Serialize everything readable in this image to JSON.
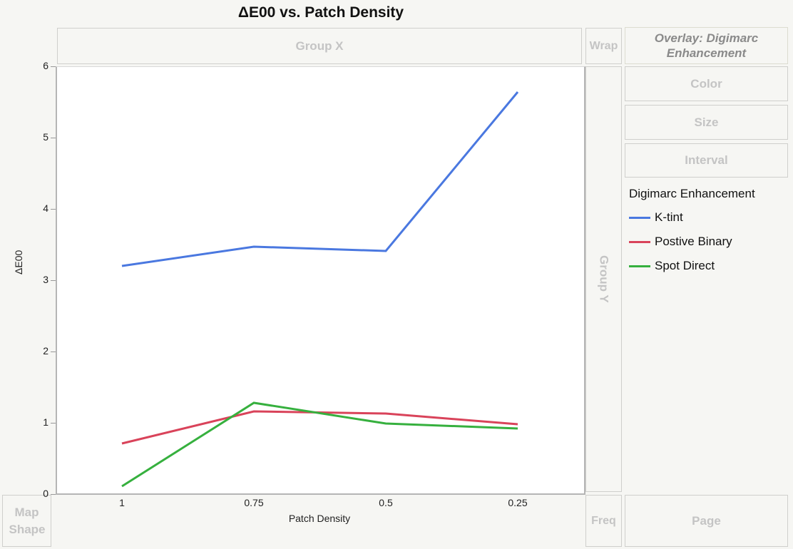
{
  "chart_data": {
    "type": "line",
    "title": "ΔE00 vs. Patch Density",
    "xlabel": "Patch Density",
    "ylabel": "ΔE00",
    "categories": [
      "1",
      "0.75",
      "0.5",
      "0.25"
    ],
    "ylim": [
      0,
      6
    ],
    "yticks": [
      "0",
      "1",
      "2",
      "3",
      "4",
      "5",
      "6"
    ],
    "grid": false,
    "legend_position": "right",
    "legend_title": "Digimarc Enhancement",
    "series": [
      {
        "name": "K-tint",
        "color": "#4a78e0",
        "values": [
          3.21,
          3.48,
          3.42,
          5.65
        ]
      },
      {
        "name": "Postive Binary",
        "color": "#d9435a",
        "values": [
          0.72,
          1.17,
          1.14,
          0.99
        ]
      },
      {
        "name": "Spot Direct",
        "color": "#36b03e",
        "values": [
          0.12,
          1.29,
          1.0,
          0.93
        ]
      }
    ]
  },
  "zones": {
    "group_x": "Group X",
    "group_y": "Group Y",
    "wrap": "Wrap",
    "overlay": "Overlay: Digimarc Enhancement",
    "color": "Color",
    "size": "Size",
    "interval": "Interval",
    "map_shape": "Map Shape",
    "freq": "Freq",
    "page": "Page"
  }
}
